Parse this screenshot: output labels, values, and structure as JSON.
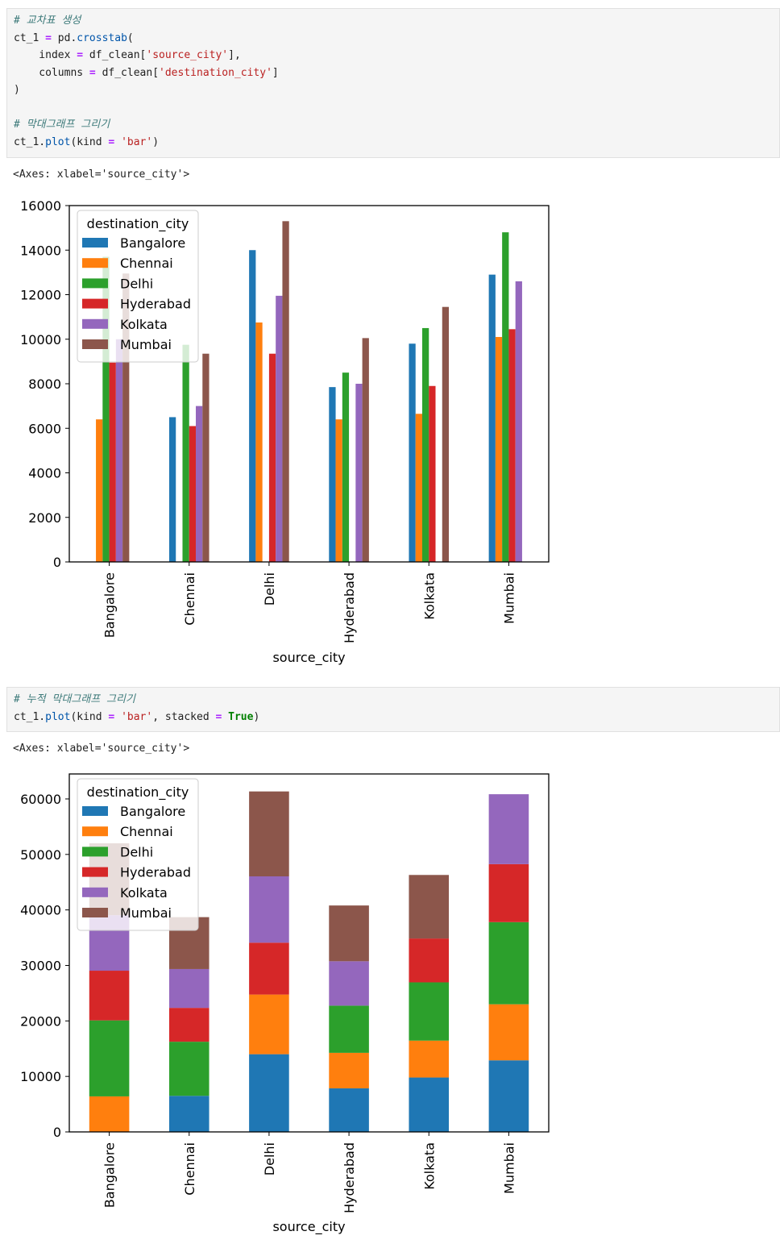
{
  "cells": [
    {
      "lines": [
        [
          {
            "t": "# 교차표 생성",
            "c": "cm"
          }
        ],
        [
          {
            "t": "ct_1 "
          },
          {
            "t": "=",
            "c": "op"
          },
          {
            "t": " pd."
          },
          {
            "t": "crosstab",
            "c": "fn"
          },
          {
            "t": "("
          }
        ],
        [
          {
            "t": "    index "
          },
          {
            "t": "=",
            "c": "op"
          },
          {
            "t": " df_clean["
          },
          {
            "t": "'source_city'",
            "c": "st"
          },
          {
            "t": "],"
          }
        ],
        [
          {
            "t": "    columns "
          },
          {
            "t": "=",
            "c": "op"
          },
          {
            "t": " df_clean["
          },
          {
            "t": "'destination_city'",
            "c": "st"
          },
          {
            "t": "]"
          }
        ],
        [
          {
            "t": ")"
          }
        ],
        [
          {
            "t": ""
          }
        ],
        [
          {
            "t": "# 막대그래프 그리기",
            "c": "cm"
          }
        ],
        [
          {
            "t": "ct_1."
          },
          {
            "t": "plot",
            "c": "fn"
          },
          {
            "t": "(kind "
          },
          {
            "t": "=",
            "c": "op"
          },
          {
            "t": " "
          },
          {
            "t": "'bar'",
            "c": "st"
          },
          {
            "t": ")"
          }
        ]
      ],
      "output": "<Axes: xlabel='source_city'>"
    },
    {
      "lines": [
        [
          {
            "t": "# 누적 막대그래프 그리기",
            "c": "cm"
          }
        ],
        [
          {
            "t": "ct_1."
          },
          {
            "t": "plot",
            "c": "fn"
          },
          {
            "t": "(kind "
          },
          {
            "t": "=",
            "c": "op"
          },
          {
            "t": " "
          },
          {
            "t": "'bar'",
            "c": "st"
          },
          {
            "t": ", stacked "
          },
          {
            "t": "=",
            "c": "op"
          },
          {
            "t": " "
          },
          {
            "t": "True",
            "c": "kw"
          },
          {
            "t": ")"
          }
        ]
      ],
      "output": "<Axes: xlabel='source_city'>"
    }
  ],
  "chart_data": [
    {
      "type": "bar",
      "stacked": false,
      "categories": [
        "Bangalore",
        "Chennai",
        "Delhi",
        "Hyderabad",
        "Kolkata",
        "Mumbai"
      ],
      "xlabel": "source_city",
      "ylim": [
        0,
        16000
      ],
      "yticks": [
        0,
        2000,
        4000,
        6000,
        8000,
        10000,
        12000,
        14000,
        16000
      ],
      "legend_title": "destination_city",
      "legend_position": "upper-left",
      "series": [
        {
          "name": "Bangalore",
          "color": "#1f77b4",
          "values": [
            0,
            6500,
            14000,
            7850,
            9800,
            12900
          ]
        },
        {
          "name": "Chennai",
          "color": "#ff7f0e",
          "values": [
            6400,
            0,
            10750,
            6400,
            6650,
            10100
          ]
        },
        {
          "name": "Delhi",
          "color": "#2ca02c",
          "values": [
            13700,
            9750,
            0,
            8500,
            10500,
            14800
          ]
        },
        {
          "name": "Hyderabad",
          "color": "#d62728",
          "values": [
            8950,
            6100,
            9350,
            0,
            7900,
            10450
          ]
        },
        {
          "name": "Kolkata",
          "color": "#9467bd",
          "values": [
            10000,
            7000,
            11950,
            8000,
            0,
            12600
          ]
        },
        {
          "name": "Mumbai",
          "color": "#8c564b",
          "values": [
            12950,
            9350,
            15300,
            10050,
            11450,
            0
          ]
        }
      ]
    },
    {
      "type": "bar",
      "stacked": true,
      "categories": [
        "Bangalore",
        "Chennai",
        "Delhi",
        "Hyderabad",
        "Kolkata",
        "Mumbai"
      ],
      "xlabel": "source_city",
      "ylim": [
        0,
        64500
      ],
      "yticks": [
        0,
        10000,
        20000,
        30000,
        40000,
        50000,
        60000
      ],
      "legend_title": "destination_city",
      "legend_position": "upper-left",
      "series": [
        {
          "name": "Bangalore",
          "color": "#1f77b4",
          "values": [
            0,
            6500,
            14000,
            7850,
            9800,
            12900
          ]
        },
        {
          "name": "Chennai",
          "color": "#ff7f0e",
          "values": [
            6400,
            0,
            10750,
            6400,
            6650,
            10100
          ]
        },
        {
          "name": "Delhi",
          "color": "#2ca02c",
          "values": [
            13700,
            9750,
            0,
            8500,
            10500,
            14800
          ]
        },
        {
          "name": "Hyderabad",
          "color": "#d62728",
          "values": [
            8950,
            6100,
            9350,
            0,
            7900,
            10450
          ]
        },
        {
          "name": "Kolkata",
          "color": "#9467bd",
          "values": [
            10000,
            7000,
            11950,
            8000,
            0,
            12600
          ]
        },
        {
          "name": "Mumbai",
          "color": "#8c564b",
          "values": [
            12950,
            9350,
            15300,
            10050,
            11450,
            0
          ]
        }
      ]
    }
  ]
}
